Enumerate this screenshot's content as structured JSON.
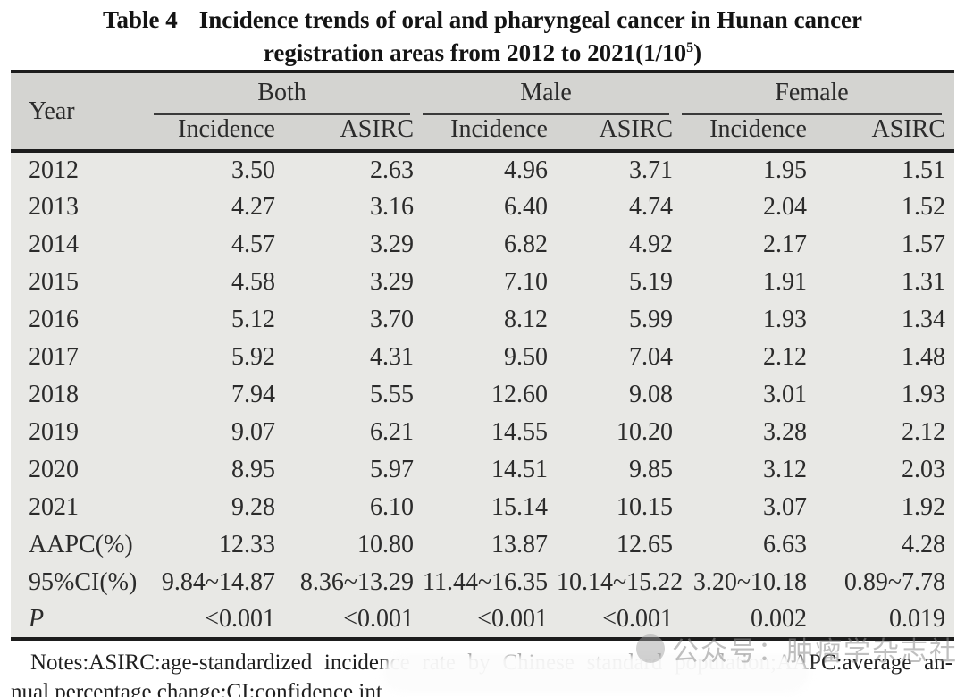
{
  "title": {
    "label": "Table 4",
    "line1": "Incidence trends of oral and pharyngeal cancer in Hunan cancer",
    "line2_pre": "registration areas from 2012 to 2021(1/10",
    "line2_sup": "5",
    "line2_post": ")"
  },
  "table": {
    "year_header": "Year",
    "groups": [
      "Both",
      "Male",
      "Female"
    ],
    "subheaders": [
      "Incidence",
      "ASIRC",
      "Incidence",
      "ASIRC",
      "Incidence",
      "ASIRC"
    ],
    "rows": [
      {
        "label": "2012",
        "values": [
          "3.50",
          "2.63",
          "4.96",
          "3.71",
          "1.95",
          "1.51"
        ]
      },
      {
        "label": "2013",
        "values": [
          "4.27",
          "3.16",
          "6.40",
          "4.74",
          "2.04",
          "1.52"
        ]
      },
      {
        "label": "2014",
        "values": [
          "4.57",
          "3.29",
          "6.82",
          "4.92",
          "2.17",
          "1.57"
        ]
      },
      {
        "label": "2015",
        "values": [
          "4.58",
          "3.29",
          "7.10",
          "5.19",
          "1.91",
          "1.31"
        ]
      },
      {
        "label": "2016",
        "values": [
          "5.12",
          "3.70",
          "8.12",
          "5.99",
          "1.93",
          "1.34"
        ]
      },
      {
        "label": "2017",
        "values": [
          "5.92",
          "4.31",
          "9.50",
          "7.04",
          "2.12",
          "1.48"
        ]
      },
      {
        "label": "2018",
        "values": [
          "7.94",
          "5.55",
          "12.60",
          "9.08",
          "3.01",
          "1.93"
        ]
      },
      {
        "label": "2019",
        "values": [
          "9.07",
          "6.21",
          "14.55",
          "10.20",
          "3.28",
          "2.12"
        ]
      },
      {
        "label": "2020",
        "values": [
          "8.95",
          "5.97",
          "14.51",
          "9.85",
          "3.12",
          "2.03"
        ]
      },
      {
        "label": "2021",
        "values": [
          "9.28",
          "6.10",
          "15.14",
          "10.15",
          "3.07",
          "1.92"
        ]
      },
      {
        "label": "AAPC(%)",
        "values": [
          "12.33",
          "10.80",
          "13.87",
          "12.65",
          "6.63",
          "4.28"
        ]
      },
      {
        "label": "95%CI(%)",
        "values": [
          "9.84~14.87",
          "8.36~13.29",
          "11.44~16.35",
          "10.14~15.22",
          "3.20~10.18",
          "0.89~7.78"
        ]
      },
      {
        "label": "P",
        "italic": true,
        "values": [
          "<0.001",
          "<0.001",
          "<0.001",
          "<0.001",
          "0.002",
          "0.019"
        ]
      }
    ]
  },
  "notes": {
    "line1": "Notes:ASIRC:age-standardized incidence rate by Chinese standard population;AAPC:average an-",
    "line2": "nual percentage change;CI:confidence int"
  },
  "watermark": {
    "text": "公众号：肿瘤学杂志社"
  },
  "colors": {
    "header_bg": "#d4d4d1",
    "body_bg": "#e8e8e5",
    "rule": "#1d1d1d",
    "text": "#2b2b2b",
    "watermark_gray": "#8d8d8d"
  }
}
